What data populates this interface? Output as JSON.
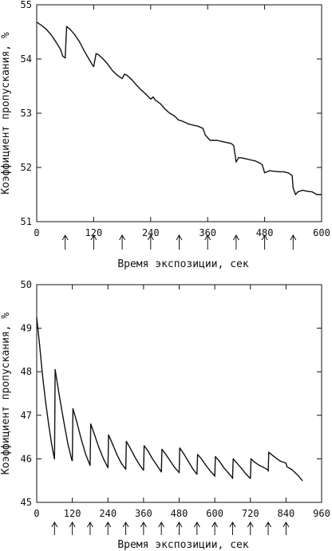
{
  "chart_data": [
    {
      "type": "line",
      "xlabel": "Время экспозиции, сек",
      "ylabel": "Коэффициент пропускания, %",
      "xlim": [
        0,
        600
      ],
      "ylim": [
        51,
        55
      ],
      "xticks": [
        0,
        120,
        240,
        360,
        480,
        600
      ],
      "yticks": [
        51,
        52,
        53,
        54,
        55
      ],
      "grid": false,
      "arrows_at": [
        60,
        120,
        180,
        240,
        300,
        360,
        420,
        480,
        540
      ],
      "series": [
        {
          "x": [
            0,
            10,
            20,
            30,
            40,
            50,
            55,
            60,
            63,
            70,
            80,
            90,
            100,
            110,
            118,
            120,
            125,
            130,
            140,
            150,
            160,
            170,
            178,
            180,
            185,
            190,
            200,
            210,
            220,
            230,
            238,
            240,
            245,
            250,
            260,
            270,
            280,
            290,
            298,
            300,
            305,
            310,
            320,
            330,
            340,
            350,
            355,
            360,
            365,
            370,
            380,
            390,
            400,
            410,
            415,
            420,
            425,
            430,
            440,
            450,
            460,
            470,
            475,
            480,
            485,
            490,
            500,
            510,
            520,
            530,
            538,
            540,
            545,
            550,
            560,
            570,
            580,
            590,
            600
          ],
          "y": [
            54.68,
            54.62,
            54.55,
            54.45,
            54.32,
            54.18,
            54.05,
            54.02,
            54.6,
            54.55,
            54.45,
            54.32,
            54.15,
            54.0,
            53.88,
            53.86,
            54.1,
            54.08,
            54.0,
            53.9,
            53.78,
            53.7,
            53.65,
            53.64,
            53.72,
            53.7,
            53.62,
            53.52,
            53.43,
            53.35,
            53.28,
            53.26,
            53.3,
            53.24,
            53.18,
            53.08,
            53.0,
            52.95,
            52.88,
            52.87,
            52.86,
            52.84,
            52.8,
            52.78,
            52.76,
            52.72,
            52.6,
            52.55,
            52.5,
            52.5,
            52.5,
            52.48,
            52.46,
            52.44,
            52.4,
            52.1,
            52.18,
            52.18,
            52.16,
            52.14,
            52.12,
            52.08,
            52.05,
            51.9,
            51.92,
            51.94,
            51.93,
            51.92,
            51.92,
            51.9,
            51.85,
            51.62,
            51.5,
            51.55,
            51.58,
            51.56,
            51.55,
            51.5,
            51.5
          ]
        }
      ]
    },
    {
      "type": "line",
      "xlabel": "Время экспозиции, сек",
      "ylabel": "Коэффициент пропускания, %",
      "xlim": [
        0,
        960
      ],
      "ylim": [
        45,
        50
      ],
      "xticks": [
        0,
        120,
        240,
        360,
        480,
        600,
        720,
        840,
        960
      ],
      "yticks": [
        45,
        46,
        47,
        48,
        49,
        50
      ],
      "grid": false,
      "arrows_at": [
        60,
        120,
        180,
        240,
        300,
        360,
        420,
        480,
        540,
        600,
        660,
        720,
        780,
        840
      ],
      "series": [
        {
          "x": [
            0,
            10,
            20,
            30,
            40,
            50,
            58,
            60,
            62,
            75,
            90,
            105,
            118,
            120,
            122,
            135,
            150,
            165,
            178,
            180,
            182,
            195,
            210,
            225,
            238,
            240,
            242,
            255,
            270,
            285,
            298,
            300,
            302,
            315,
            330,
            345,
            358,
            360,
            362,
            375,
            390,
            405,
            418,
            420,
            422,
            435,
            450,
            465,
            478,
            480,
            482,
            495,
            510,
            525,
            538,
            540,
            542,
            555,
            570,
            585,
            598,
            600,
            602,
            615,
            630,
            645,
            658,
            660,
            662,
            675,
            690,
            705,
            718,
            720,
            722,
            735,
            750,
            765,
            778,
            780,
            782,
            800,
            820,
            840,
            843,
            860,
            880,
            895
          ],
          "y": [
            49.25,
            48.6,
            47.9,
            47.3,
            46.8,
            46.35,
            46.05,
            46.0,
            48.05,
            47.5,
            46.9,
            46.35,
            45.98,
            45.96,
            47.15,
            46.85,
            46.45,
            46.1,
            45.88,
            45.85,
            46.8,
            46.55,
            46.25,
            46.0,
            45.82,
            45.8,
            46.55,
            46.35,
            46.1,
            45.9,
            45.78,
            45.76,
            46.4,
            46.25,
            46.05,
            45.88,
            45.75,
            45.74,
            46.3,
            46.18,
            46.0,
            45.85,
            45.72,
            45.7,
            46.22,
            46.1,
            45.95,
            45.8,
            45.7,
            45.68,
            46.25,
            46.12,
            45.95,
            45.78,
            45.66,
            45.65,
            46.1,
            46.0,
            45.85,
            45.72,
            45.62,
            45.6,
            46.05,
            45.95,
            45.8,
            45.68,
            45.58,
            45.55,
            46.0,
            45.9,
            45.78,
            45.65,
            45.56,
            45.55,
            46.0,
            45.92,
            45.85,
            45.8,
            45.75,
            45.72,
            46.15,
            46.05,
            45.95,
            45.9,
            45.82,
            45.75,
            45.62,
            45.5
          ]
        }
      ]
    }
  ]
}
